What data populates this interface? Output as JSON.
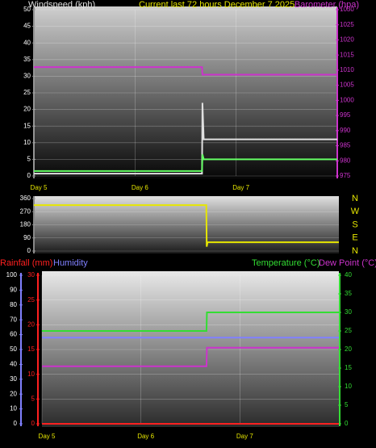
{
  "chart_data": [
    {
      "type": "line",
      "title": "Current last 72 hours December 7 2025",
      "x": [
        0,
        39.9,
        40,
        40.3,
        72
      ],
      "xlim": [
        0,
        72
      ],
      "xticks": [
        {
          "value": 0,
          "label": "Day 5"
        },
        {
          "value": 24,
          "label": "Day 6"
        },
        {
          "value": 48,
          "label": "Day 7"
        }
      ],
      "ylim": [
        0,
        50
      ],
      "yticks": [
        0,
        5,
        10,
        15,
        20,
        25,
        30,
        35,
        40,
        45,
        50
      ],
      "y2lim": [
        975,
        1030
      ],
      "y2ticks": [
        975,
        980,
        985,
        990,
        995,
        1000,
        1005,
        1010,
        1015,
        1020,
        1025,
        1030
      ],
      "grid": true,
      "series": [
        {
          "name": "Windspeed (kph)",
          "color": "#e0e0e0",
          "values": [
            0.7,
            0.7,
            22,
            11,
            11
          ]
        },
        {
          "color": "#66ff66",
          "values": [
            1.5,
            1.5,
            6.5,
            5,
            5
          ]
        },
        {
          "name": "Barometer (hpa)",
          "color": "#cc33cc",
          "axis": "y2",
          "values": [
            1011,
            1011,
            1008.5,
            1008.5,
            1008.5
          ]
        }
      ]
    },
    {
      "type": "line",
      "x": [
        0,
        40.7,
        40.8,
        41,
        72
      ],
      "xlim": [
        0,
        72
      ],
      "ylim": [
        0,
        360
      ],
      "yticks": [
        0,
        90,
        180,
        270,
        360
      ],
      "y2lim": [
        0,
        360
      ],
      "y2ticks": [
        {
          "value": 0,
          "label": "N"
        },
        {
          "value": 90,
          "label": "E"
        },
        {
          "value": 180,
          "label": "S"
        },
        {
          "value": 270,
          "label": "W"
        },
        {
          "value": 360,
          "label": "N"
        }
      ],
      "grid": true,
      "series": [
        {
          "color": "#e6e600",
          "values": [
            315,
            315,
            30,
            60,
            60
          ]
        }
      ]
    },
    {
      "type": "line",
      "x": [
        0,
        39.9,
        40,
        72
      ],
      "xlim": [
        0,
        72
      ],
      "xticks": [
        {
          "value": 0,
          "label": "Day 5"
        },
        {
          "value": 24,
          "label": "Day 6"
        },
        {
          "value": 48,
          "label": "Day 7"
        }
      ],
      "ylim": [
        0,
        30
      ],
      "yticks": [
        0,
        5,
        10,
        15,
        20,
        25,
        30
      ],
      "y2lim": [
        0,
        40
      ],
      "y2ticks": [
        0,
        5,
        10,
        15,
        20,
        25,
        30,
        35,
        40
      ],
      "y3lim": [
        0,
        100
      ],
      "y3ticks": [
        0,
        10,
        20,
        30,
        40,
        50,
        60,
        70,
        80,
        90,
        100
      ],
      "grid": true,
      "series": [
        {
          "name": "Rainfall (mm)",
          "color": "#ff2020",
          "axis": "y",
          "values": [
            0,
            0,
            0,
            0
          ]
        },
        {
          "name": "Humidity",
          "color": "#8080ff",
          "axis": "y3",
          "values": [
            58,
            58,
            58,
            58
          ]
        },
        {
          "name": "Temperature (°C)",
          "color": "#33dd33",
          "axis": "y2",
          "values": [
            25,
            25,
            30,
            30
          ]
        },
        {
          "name": "Dew Point (°C)",
          "color": "#cc33cc",
          "axis": "y2",
          "values": [
            15.5,
            15.5,
            20.5,
            20.5
          ]
        }
      ]
    }
  ]
}
